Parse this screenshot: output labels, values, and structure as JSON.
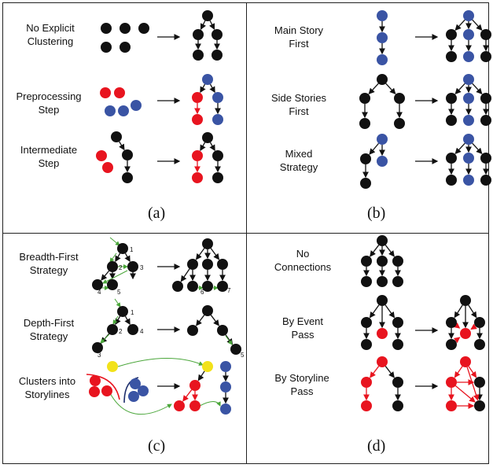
{
  "colors": {
    "black": "#111111",
    "red": "#e8141f",
    "blue": "#3a54a4",
    "yellow": "#f2e21a",
    "green": "#4aa63a",
    "navy": "#1d2d6b"
  },
  "panel_a": {
    "caption": "(a)",
    "labels": {
      "no_explicit": [
        "No Explicit",
        "Clustering"
      ],
      "preprocessing": [
        "Preprocessing",
        "Step"
      ],
      "intermediate": [
        "Intermediate",
        "Step"
      ]
    }
  },
  "panel_b": {
    "caption": "(b)",
    "labels": {
      "main_story": [
        "Main Story",
        "First"
      ],
      "side_stories": [
        "Side Stories",
        "First"
      ],
      "mixed": [
        "Mixed",
        "Strategy"
      ]
    }
  },
  "panel_c": {
    "caption": "(c)",
    "labels": {
      "breadth": [
        "Breadth-First",
        "Strategy"
      ],
      "depth": [
        "Depth-First",
        "Strategy"
      ],
      "clusters": [
        "Clusters into",
        "Storylines"
      ]
    },
    "breadth_step_numbers": [
      "1",
      "2",
      "3",
      "4",
      "5",
      "6",
      "7"
    ],
    "depth_step_numbers": [
      "1",
      "2",
      "3",
      "4",
      "5"
    ]
  },
  "panel_d": {
    "caption": "(d)",
    "labels": {
      "no_connections": [
        "No",
        "Connections"
      ],
      "event_pass": [
        "By Event",
        "Pass"
      ],
      "storyline_pass": [
        "By Storyline",
        "Pass"
      ]
    }
  }
}
